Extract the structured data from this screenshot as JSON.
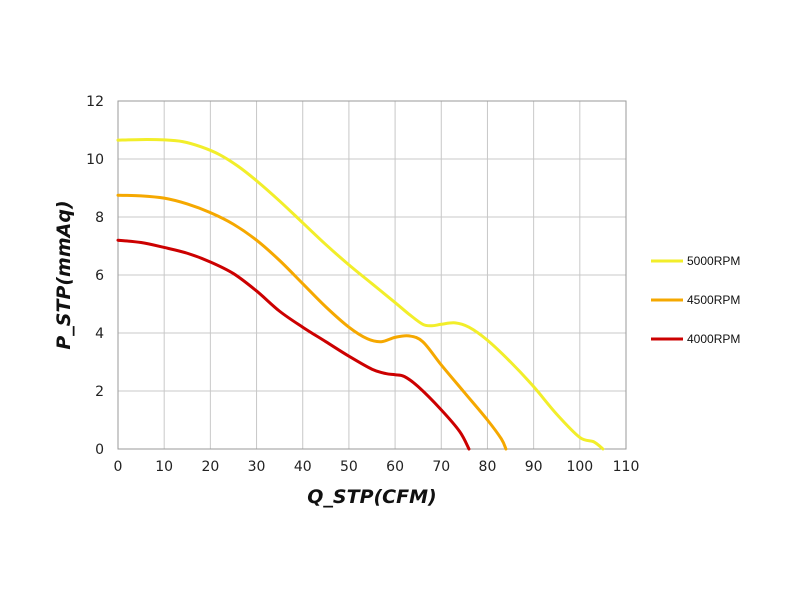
{
  "chart_data": {
    "type": "line",
    "xlabel": "Q_STP(CFM)",
    "ylabel": "P_STP(mmAq)",
    "xlim": [
      0,
      110
    ],
    "ylim": [
      0,
      12
    ],
    "x_ticks": [
      "0",
      "10",
      "20",
      "30",
      "40",
      "50",
      "60",
      "70",
      "80",
      "90",
      "100",
      "110"
    ],
    "y_ticks": [
      "0",
      "2",
      "4",
      "6",
      "8",
      "10",
      "12"
    ],
    "grid": true,
    "legend_position": "right",
    "series": [
      {
        "name": "5000RPM",
        "color": "#f2ee2a",
        "x": [
          0,
          5,
          10,
          14,
          18,
          22,
          26,
          30,
          35,
          40,
          45,
          50,
          55,
          60,
          63,
          66,
          68,
          70,
          73,
          76,
          80,
          85,
          90,
          95,
          100,
          103,
          105
        ],
        "y": [
          10.65,
          10.67,
          10.66,
          10.6,
          10.42,
          10.15,
          9.75,
          9.25,
          8.55,
          7.8,
          7.05,
          6.35,
          5.7,
          5.05,
          4.65,
          4.3,
          4.25,
          4.3,
          4.35,
          4.2,
          3.75,
          3.0,
          2.15,
          1.2,
          0.4,
          0.25,
          0.0
        ]
      },
      {
        "name": "4500RPM",
        "color": "#f5a800",
        "x": [
          0,
          5,
          10,
          15,
          20,
          25,
          30,
          35,
          40,
          45,
          50,
          54,
          57,
          60,
          63,
          66,
          70,
          75,
          80,
          83,
          84
        ],
        "y": [
          8.75,
          8.73,
          8.65,
          8.45,
          8.15,
          7.75,
          7.2,
          6.5,
          5.7,
          4.9,
          4.2,
          3.8,
          3.7,
          3.85,
          3.9,
          3.7,
          2.9,
          1.95,
          1.0,
          0.35,
          0.0
        ]
      },
      {
        "name": "4000RPM",
        "color": "#cc0000",
        "x": [
          0,
          5,
          10,
          15,
          20,
          25,
          30,
          35,
          40,
          45,
          50,
          55,
          58,
          60,
          62,
          65,
          70,
          74,
          76
        ],
        "y": [
          7.2,
          7.12,
          6.95,
          6.75,
          6.45,
          6.05,
          5.45,
          4.75,
          4.2,
          3.7,
          3.2,
          2.75,
          2.6,
          2.56,
          2.5,
          2.15,
          1.35,
          0.6,
          0.0
        ]
      }
    ]
  }
}
